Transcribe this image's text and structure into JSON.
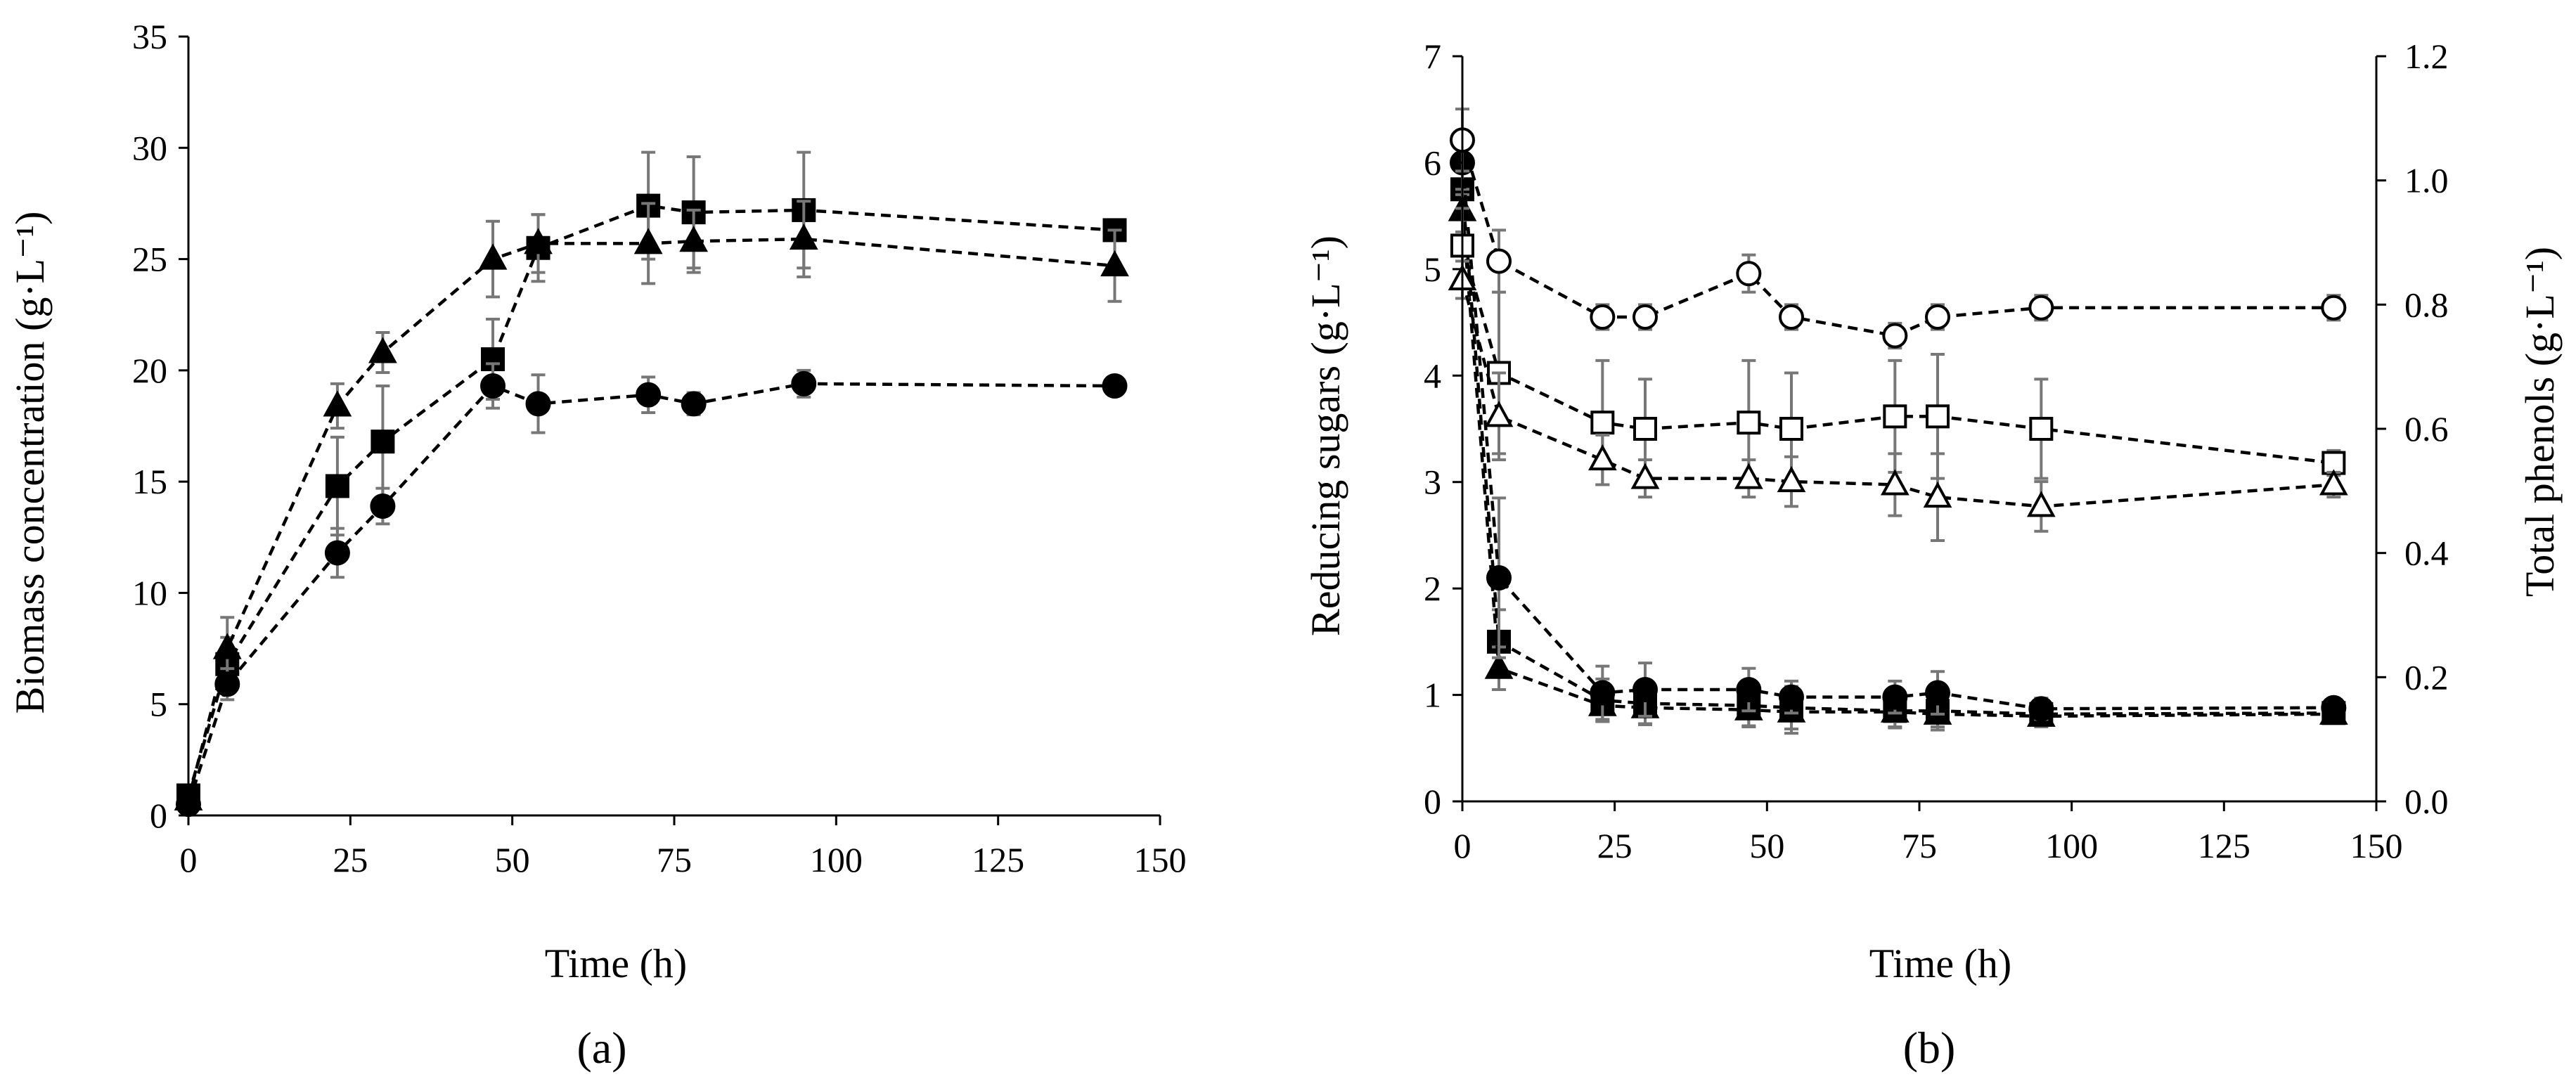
{
  "figure": {
    "panel_a_label": "(a)",
    "panel_b_label": "(b)"
  },
  "chart_data": [
    {
      "type": "scatter",
      "panel": "a",
      "title": "",
      "xlabel": "Time (h)",
      "ylabel": "Biomass concentration (g·L⁻¹)",
      "xlim": [
        0,
        150
      ],
      "ylim": [
        0,
        35
      ],
      "xticks": [
        0,
        25,
        50,
        75,
        100,
        125,
        150
      ],
      "yticks": [
        0,
        5,
        10,
        15,
        20,
        25,
        30,
        35
      ],
      "line_style": "dashed",
      "series": [
        {
          "name": "square",
          "marker": "square",
          "filled": true,
          "x": [
            0,
            6,
            23,
            30,
            47,
            54,
            71,
            78,
            95,
            143
          ],
          "y": [
            0.9,
            6.8,
            14.8,
            16.8,
            20.5,
            25.5,
            27.4,
            27.1,
            27.2,
            26.3
          ],
          "err": [
            0.2,
            1.2,
            2.2,
            2.5,
            1.8,
            1.5,
            2.4,
            2.5,
            2.6,
            0.3
          ]
        },
        {
          "name": "triangle",
          "marker": "triangle",
          "filled": true,
          "x": [
            0,
            6,
            23,
            30,
            47,
            54,
            71,
            78,
            95,
            143
          ],
          "y": [
            0.7,
            7.5,
            18.4,
            20.8,
            25.0,
            25.7,
            25.7,
            25.8,
            25.9,
            24.7
          ],
          "err": [
            0.2,
            1.4,
            1.0,
            0.9,
            1.7,
            1.3,
            1.8,
            1.4,
            1.7,
            1.6
          ]
        },
        {
          "name": "circle",
          "marker": "circle",
          "filled": true,
          "x": [
            0,
            6,
            23,
            30,
            47,
            54,
            71,
            78,
            95,
            143
          ],
          "y": [
            0.5,
            5.9,
            11.8,
            13.9,
            19.3,
            18.5,
            18.9,
            18.5,
            19.4,
            19.3
          ],
          "err": [
            0.2,
            0.7,
            1.1,
            0.8,
            1.0,
            1.3,
            0.8,
            0.5,
            0.6,
            0.2
          ]
        }
      ]
    },
    {
      "type": "scatter",
      "panel": "b",
      "title": "",
      "xlabel": "Time (h)",
      "ylabel": "Reducing sugars (g·L⁻¹)",
      "y2label": "Total phenols (g·L⁻¹)",
      "xlim": [
        0,
        150
      ],
      "ylim": [
        0,
        7
      ],
      "y2lim": [
        0,
        1.2
      ],
      "xticks": [
        0,
        25,
        50,
        75,
        100,
        125,
        150
      ],
      "yticks": [
        0,
        1,
        2,
        3,
        4,
        5,
        6,
        7
      ],
      "y2ticks": [
        "0.0",
        "0.2",
        "0.4",
        "0.6",
        "0.8",
        "1.0",
        "1.2"
      ],
      "line_style": "dashed",
      "series": [
        {
          "name": "reducing sugars (filled square)",
          "axis": "left",
          "marker": "square",
          "filled": true,
          "x": [
            0,
            6,
            23,
            30,
            47,
            54,
            71,
            78,
            95,
            143
          ],
          "y": [
            5.75,
            1.5,
            0.95,
            0.92,
            0.9,
            0.88,
            0.85,
            0.85,
            0.82,
            0.83
          ],
          "err": [
            0.2,
            0.3,
            0.2,
            0.2,
            0.2,
            0.2,
            0.15,
            0.15,
            0.1,
            0.05
          ]
        },
        {
          "name": "reducing sugars (filled triangle)",
          "axis": "left",
          "marker": "triangle",
          "filled": true,
          "x": [
            0,
            6,
            23,
            30,
            47,
            54,
            71,
            78,
            95,
            143
          ],
          "y": [
            5.55,
            1.25,
            0.9,
            0.88,
            0.86,
            0.84,
            0.84,
            0.82,
            0.8,
            0.82
          ],
          "err": [
            0.2,
            0.2,
            0.15,
            0.15,
            0.15,
            0.2,
            0.15,
            0.15,
            0.1,
            0.05
          ]
        },
        {
          "name": "reducing sugars (filled circle)",
          "axis": "left",
          "marker": "circle",
          "filled": true,
          "x": [
            0,
            6,
            23,
            30,
            47,
            54,
            71,
            78,
            95,
            143
          ],
          "y": [
            6.0,
            2.1,
            1.02,
            1.05,
            1.05,
            0.98,
            0.98,
            1.02,
            0.87,
            0.88
          ],
          "err": [
            0.3,
            0.75,
            0.25,
            0.25,
            0.2,
            0.15,
            0.15,
            0.2,
            0.1,
            0.05
          ]
        },
        {
          "name": "total phenols (open circle)",
          "axis": "right",
          "marker": "circle",
          "filled": false,
          "x": [
            0,
            6,
            23,
            30,
            47,
            54,
            71,
            78,
            95,
            143
          ],
          "y": [
            1.065,
            0.87,
            0.78,
            0.78,
            0.85,
            0.78,
            0.75,
            0.78,
            0.795,
            0.795
          ],
          "err": [
            0.05,
            0.05,
            0.02,
            0.02,
            0.03,
            0.02,
            0.02,
            0.02,
            0.02,
            0.02
          ]
        },
        {
          "name": "total phenols (open square)",
          "axis": "right",
          "marker": "square",
          "filled": false,
          "x": [
            0,
            6,
            23,
            30,
            47,
            54,
            71,
            78,
            95,
            143
          ],
          "y": [
            0.895,
            0.69,
            0.61,
            0.6,
            0.61,
            0.6,
            0.62,
            0.62,
            0.6,
            0.545
          ],
          "err": [
            0.06,
            0.13,
            0.1,
            0.08,
            0.1,
            0.09,
            0.09,
            0.1,
            0.08,
            0.02
          ]
        },
        {
          "name": "total phenols (open triangle)",
          "axis": "right",
          "marker": "triangle",
          "filled": false,
          "x": [
            0,
            6,
            23,
            30,
            47,
            54,
            71,
            78,
            95,
            143
          ],
          "y": [
            0.84,
            0.62,
            0.55,
            0.52,
            0.52,
            0.515,
            0.51,
            0.49,
            0.475,
            0.51
          ],
          "err": [
            0.03,
            0.07,
            0.04,
            0.03,
            0.03,
            0.04,
            0.05,
            0.07,
            0.04,
            0.02
          ]
        }
      ]
    }
  ]
}
